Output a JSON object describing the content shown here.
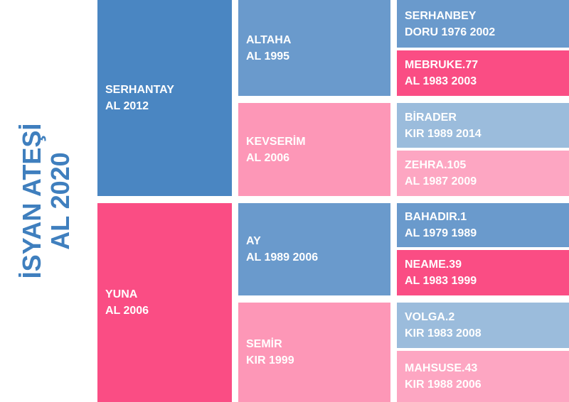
{
  "subject": {
    "name": "İSYAN ATEŞİ",
    "color_year": "AL 2020"
  },
  "sire": {
    "name": "SERHANTAY",
    "color_year": "AL 2012",
    "sire": {
      "name": "ALTAHA",
      "color_year": "AL 1995",
      "sire": {
        "name": "SERHANBEY",
        "color_year": "DORU 1976 2002"
      },
      "dam": {
        "name": "MEBRUKE.77",
        "color_year": "AL 1983 2003"
      }
    },
    "dam": {
      "name": "KEVSERİM",
      "color_year": "AL 2006",
      "sire": {
        "name": "BİRADER",
        "color_year": "KIR 1989 2014"
      },
      "dam": {
        "name": "ZEHRA.105",
        "color_year": "AL 1987 2009"
      }
    }
  },
  "dam": {
    "name": "YUNA",
    "color_year": "AL 2006",
    "sire": {
      "name": "AY",
      "color_year": "AL 1989 2006",
      "sire": {
        "name": "BAHADIR.1",
        "color_year": "AL 1979 1989"
      },
      "dam": {
        "name": "NEAME.39",
        "color_year": "AL 1983 1999"
      }
    },
    "dam": {
      "name": "SEMİR",
      "color_year": "KIR 1999",
      "sire": {
        "name": "VOLGA.2",
        "color_year": "KIR 1983 2008"
      },
      "dam": {
        "name": "MAHSUSE.43",
        "color_year": "KIR 1988 2006"
      }
    }
  },
  "colors": {
    "subject_text": "#3f7fbe",
    "male": "#4a86c2",
    "female": "#fa4d84",
    "male_mid": "#6a9acc",
    "female_mid": "#fd97b7",
    "male_light": "#9bbcdc",
    "female_light": "#fda6c2"
  }
}
